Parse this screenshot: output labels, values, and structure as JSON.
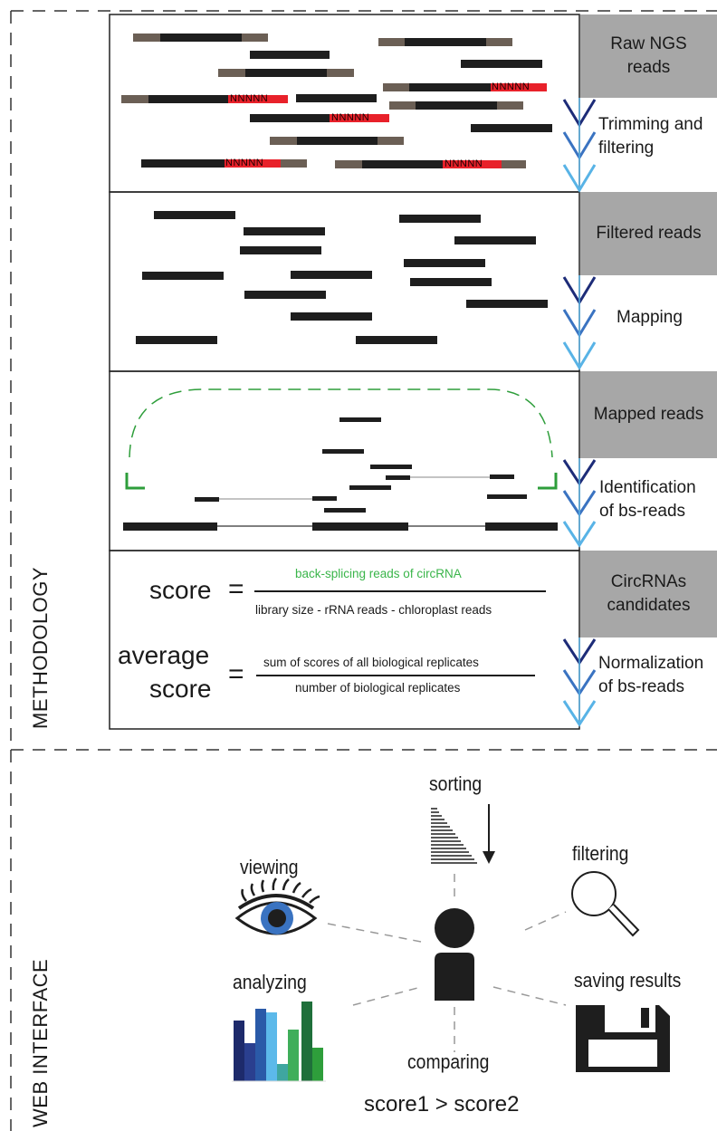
{
  "sections": {
    "methodology": "METHODOLOGY",
    "web_interface": "WEB INTERFACE"
  },
  "steps": [
    {
      "box": "Raw NGS reads",
      "action": "Trimming and filtering"
    },
    {
      "box": "Filtered reads",
      "action": "Mapping"
    },
    {
      "box": "Mapped reads",
      "action": "Identification of bs-reads"
    },
    {
      "box": "CircRNAs candidates",
      "action": "Normalization of bs-reads"
    }
  ],
  "step_lines": {
    "box0": [
      "Raw NGS",
      "reads"
    ],
    "act0": [
      "Trimming and",
      "filtering"
    ],
    "box1": [
      "Filtered reads"
    ],
    "act1": [
      "Mapping"
    ],
    "box2": [
      "Mapped reads"
    ],
    "act2": [
      "Identification",
      "of bs-reads"
    ],
    "box3": [
      "CircRNAs",
      "candidates"
    ],
    "act3": [
      "Normalization",
      "of bs-reads"
    ]
  },
  "masked_seq": "NNNNN",
  "formula": {
    "score_label": "score",
    "equals": "=",
    "score_numerator": "back-splicing reads of circRNA",
    "score_denominator": "library size - rRNA reads - chloroplast reads",
    "avg_label_1": "average",
    "avg_label_2": "score",
    "avg_numerator": "sum of scores of all biological replicates",
    "avg_denominator": "number of biological replicates"
  },
  "web_features": {
    "sorting": "sorting",
    "viewing": "viewing",
    "filtering": "filtering",
    "analyzing": "analyzing",
    "saving": "saving results",
    "comparing": "comparing",
    "compare_expr": "score1 > score2"
  },
  "colors": {
    "read": "#1e1e1e",
    "adapter": "#6b5f55",
    "masked": "#e8212a",
    "masked_text": "#1a0000",
    "grey_box": "#a7a7a7",
    "arrow_dark": "#1d2c78",
    "arrow_mid": "#3a73c1",
    "arrow_light": "#58b3e6",
    "circ_arc": "#2e9e3b",
    "numerator_green": "#3ab54a",
    "bars": [
      "#1d2a6b",
      "#2a5aa8",
      "#3d8ed1",
      "#5cb9ea",
      "#2f9e8f",
      "#3fae5a",
      "#1f6f3a",
      "#2e9e3b"
    ]
  },
  "icons": [
    "eye-icon",
    "magnifier-icon",
    "floppy-disk-icon",
    "user-icon",
    "bar-chart-icon",
    "sorted-list-icon",
    "down-arrow-icon"
  ]
}
